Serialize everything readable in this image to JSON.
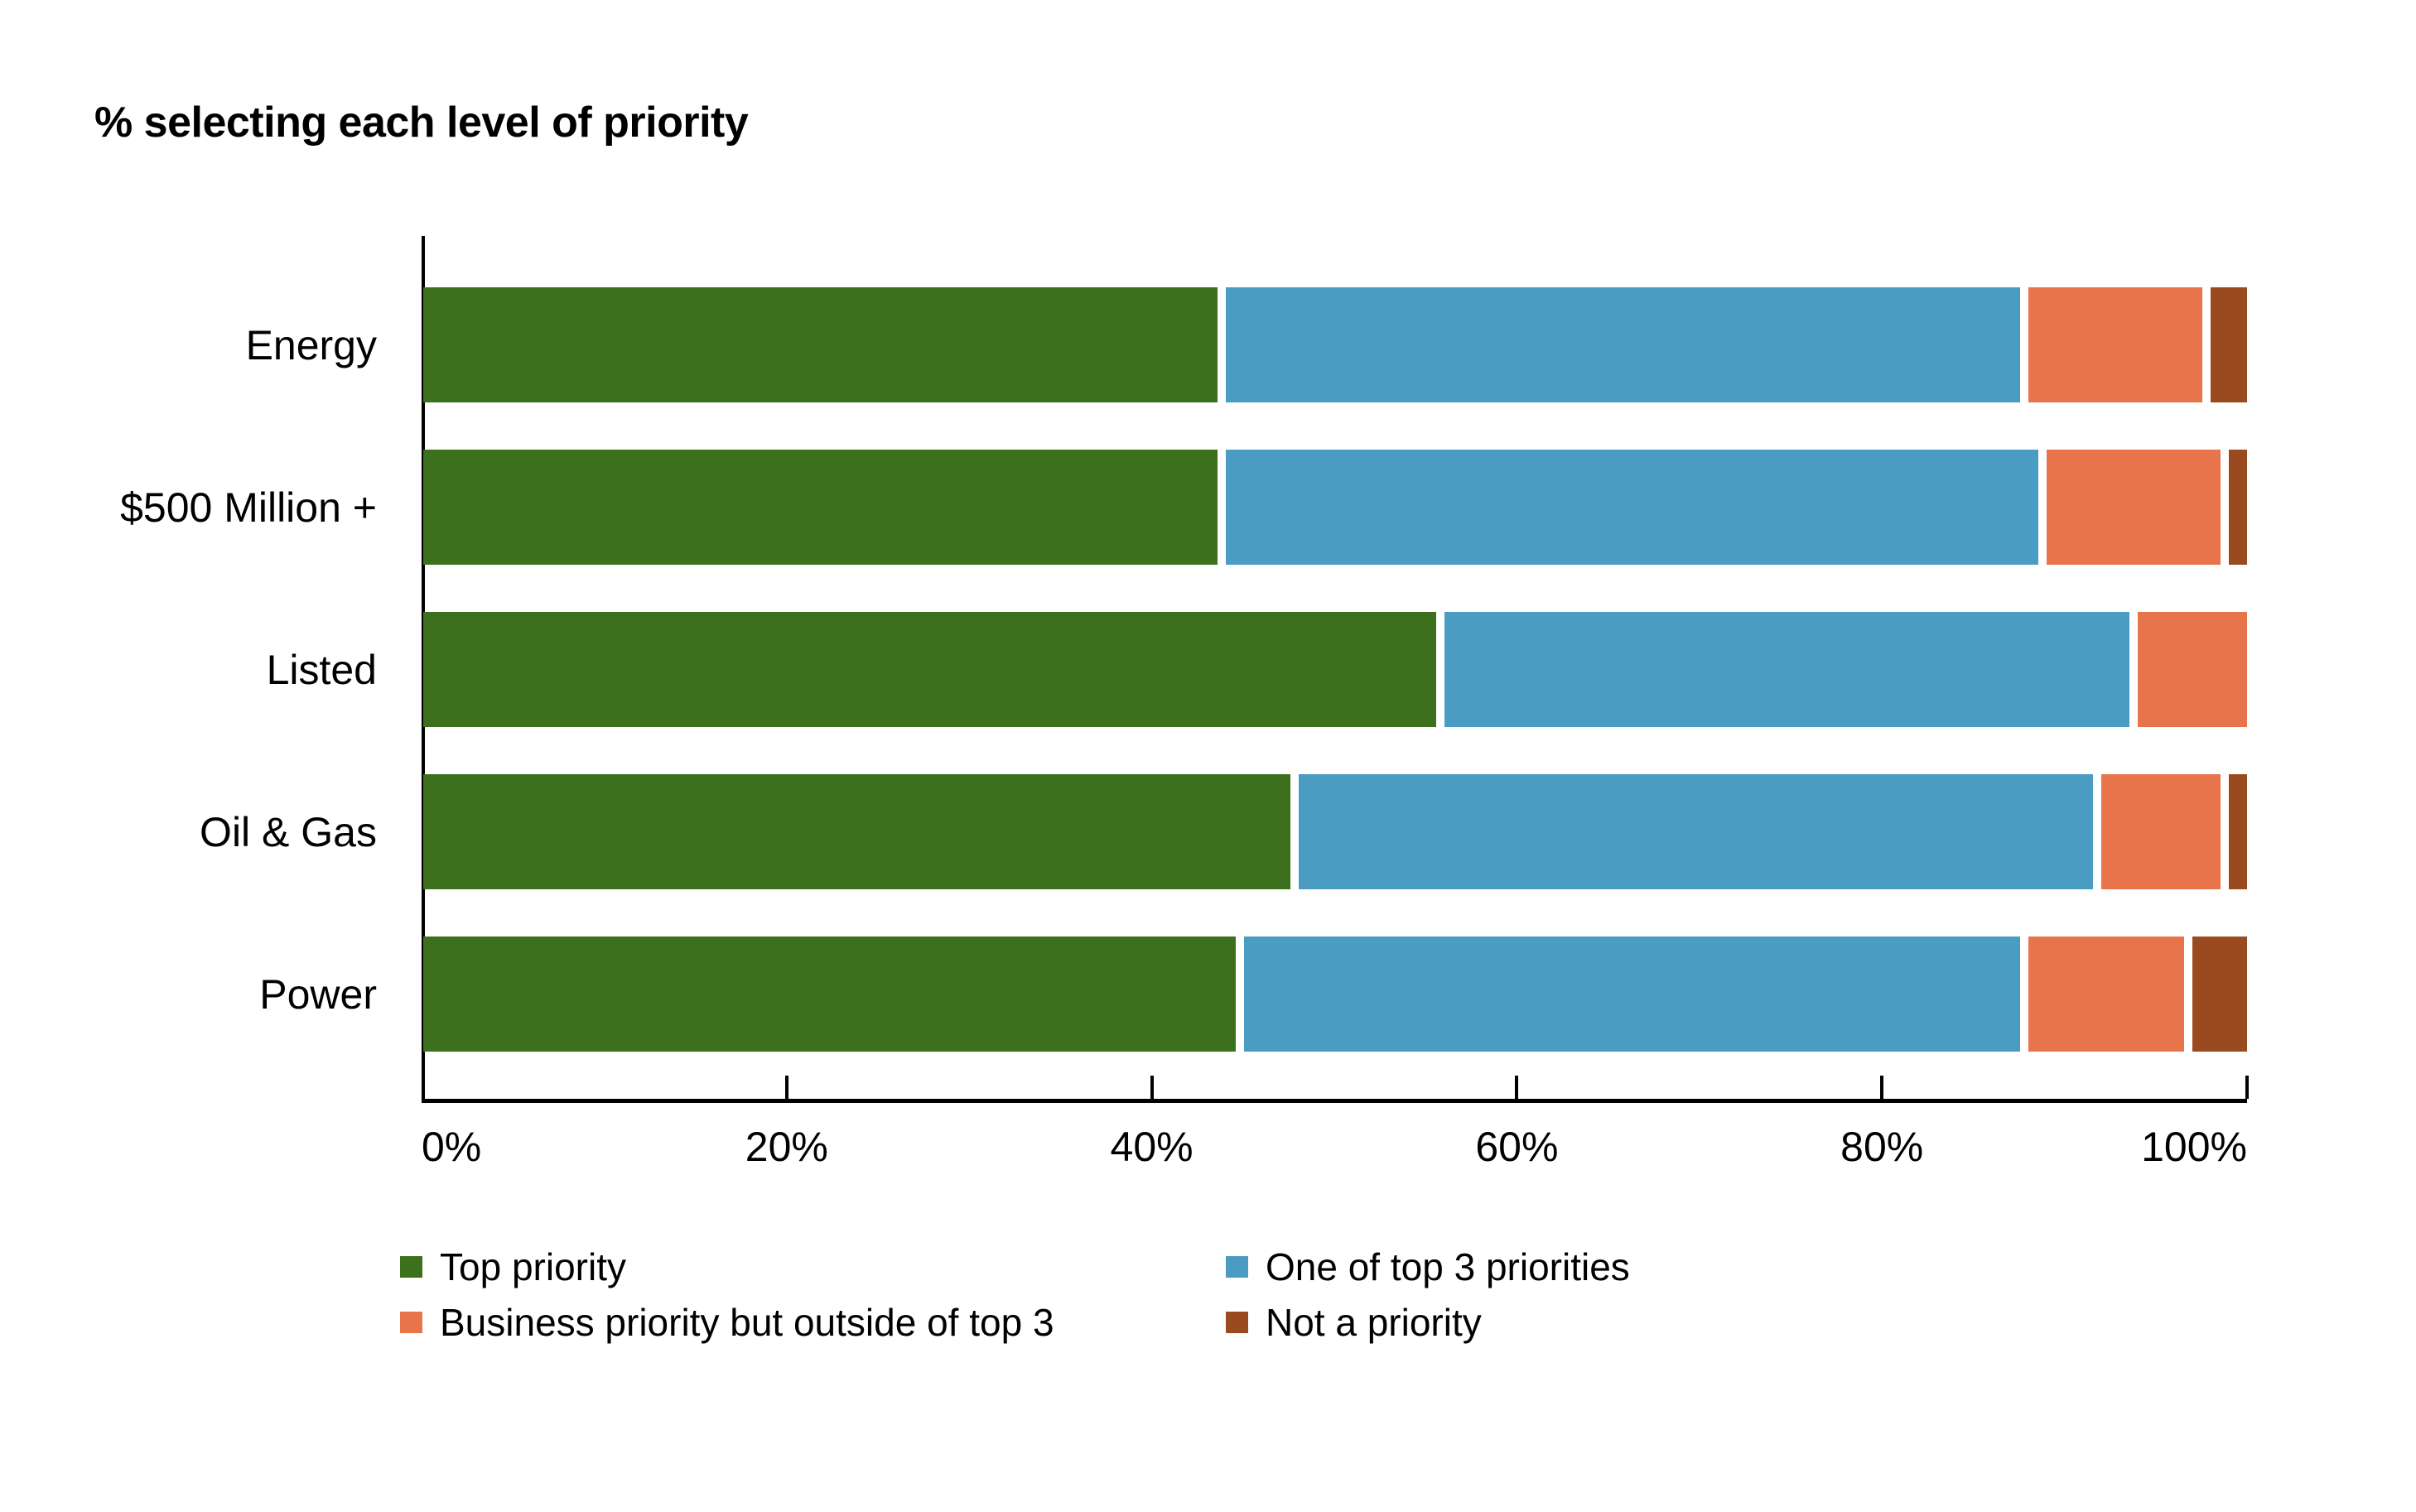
{
  "title": "% selecting each level of priority",
  "chart_data": {
    "type": "bar",
    "orientation": "horizontal",
    "stacked": true,
    "title": "% selecting each level of priority",
    "categories": [
      "Energy",
      "$500 Million +",
      "Listed",
      "Oil & Gas",
      "Power"
    ],
    "series": [
      {
        "name": "Top priority",
        "color": "#3C701D",
        "values": [
          44,
          44,
          56,
          48,
          45
        ]
      },
      {
        "name": "One of top 3 priorities",
        "color": "#4A9CC3",
        "values": [
          44,
          45,
          38,
          44,
          43
        ]
      },
      {
        "name": "Business priority but outside of top 3",
        "color": "#E8744B",
        "values": [
          10,
          10,
          6,
          7,
          9
        ]
      },
      {
        "name": "Not a priority",
        "color": "#9A4A1F",
        "values": [
          2,
          1,
          0,
          1,
          3
        ]
      }
    ],
    "x_axis": {
      "range": [
        0,
        100
      ],
      "tick_values": [
        0,
        20,
        40,
        60,
        80,
        100
      ],
      "tick_labels": [
        "0%",
        "20%",
        "40%",
        "60%",
        "80%",
        "100%"
      ]
    },
    "grid": false,
    "legend_position": "bottom"
  },
  "colors": {
    "background": "#FFFFFF",
    "axis": "#000000",
    "text": "#000000"
  }
}
